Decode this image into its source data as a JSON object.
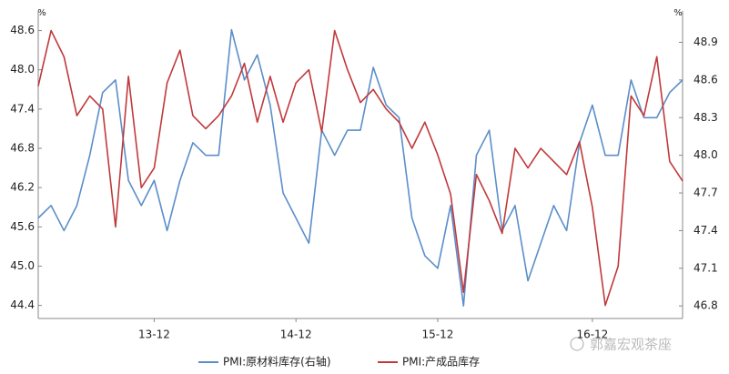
{
  "chart_data": {
    "type": "line",
    "ylabel": "%",
    "y2label": "%",
    "categories": [
      null,
      null,
      null,
      null,
      null,
      null,
      null,
      null,
      null,
      "13-12",
      null,
      null,
      null,
      null,
      null,
      null,
      null,
      null,
      null,
      null,
      "14-12",
      null,
      null,
      null,
      null,
      null,
      null,
      null,
      null,
      null,
      null,
      "15-12",
      null,
      null,
      null,
      null,
      null,
      null,
      null,
      null,
      null,
      null,
      null,
      "16-12",
      null,
      null,
      null,
      null,
      null,
      null,
      null
    ],
    "series": [
      {
        "name": "PMI:原材料库存(右轴)",
        "color": "#5b8ec9",
        "axis": "y2",
        "values": [
          47.5,
          47.6,
          47.4,
          47.6,
          48.0,
          48.5,
          48.6,
          47.8,
          47.6,
          47.8,
          47.4,
          47.8,
          48.1,
          48.0,
          48.0,
          49.0,
          48.6,
          48.8,
          48.4,
          47.7,
          47.5,
          47.3,
          48.2,
          48.0,
          48.2,
          48.2,
          48.7,
          48.4,
          48.3,
          47.5,
          47.2,
          47.1,
          47.6,
          46.8,
          48.0,
          48.2,
          47.4,
          47.6,
          47.0,
          47.3,
          47.6,
          47.4,
          48.1,
          48.4,
          48.0,
          48.0,
          48.6,
          48.3,
          48.3,
          48.5,
          48.6
        ]
      },
      {
        "name": "PMI:产成品库存",
        "color": "#c0393b",
        "values": [
          47.75,
          48.6,
          48.2,
          47.3,
          47.6,
          47.4,
          45.6,
          47.9,
          46.2,
          46.5,
          47.8,
          48.3,
          47.3,
          47.1,
          47.3,
          47.6,
          48.1,
          47.2,
          47.9,
          47.2,
          47.8,
          48.0,
          47.05,
          48.6,
          48.0,
          47.5,
          47.7,
          47.4,
          47.2,
          46.8,
          47.2,
          46.7,
          46.1,
          44.6,
          46.4,
          46.0,
          45.5,
          46.8,
          46.5,
          46.8,
          46.6,
          46.4,
          46.9,
          45.9,
          44.4,
          45.0,
          47.6,
          47.3,
          48.2,
          46.6,
          46.3
        ]
      }
    ],
    "ylim": [
      44.2,
      48.9
    ],
    "yticks": [
      44.4,
      {
        "value": 45,
        "label": "45.0"
      },
      45.6,
      46.2,
      46.8,
      47.4,
      {
        "value": 48,
        "label": "48.0"
      },
      48.6
    ],
    "y2lim": [
      46.7,
      49.15
    ],
    "y2ticks": [
      46.8,
      47.1,
      47.4,
      47.7,
      {
        "value": 48,
        "label": "48.0"
      },
      48.3,
      48.6,
      48.9
    ],
    "grid": false,
    "watermark": "郭嘉宏观茶座"
  }
}
